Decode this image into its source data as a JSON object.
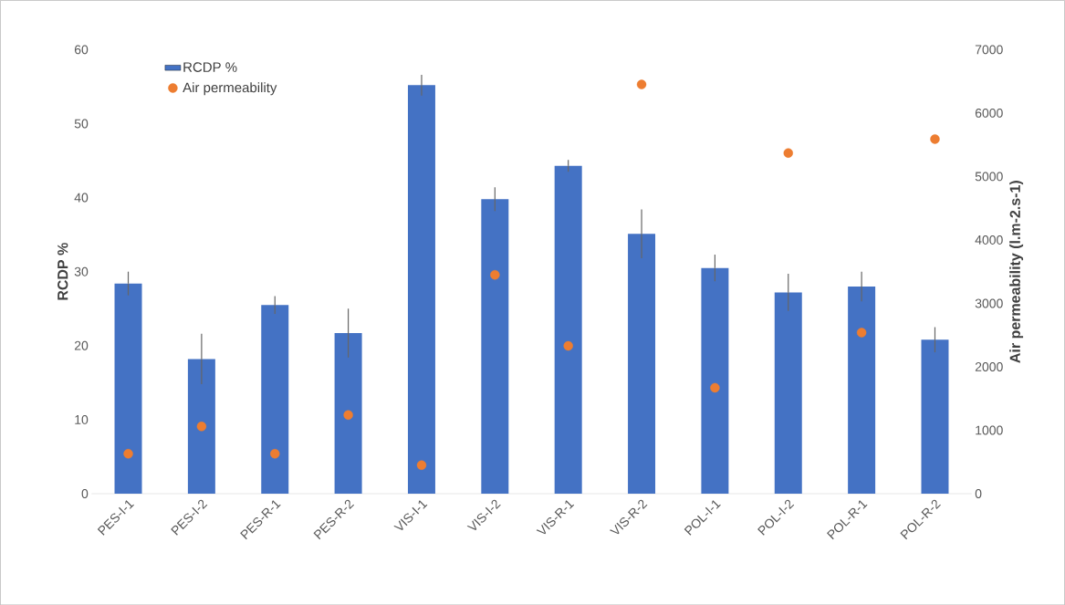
{
  "chart_data": {
    "type": "bar",
    "ylabel": "RCDP %",
    "y2label": "Air permeability (l.m-2.s-1)",
    "categories": [
      "PES-I-1",
      "PES-I-2",
      "PES-R-1",
      "PES-R-2",
      "VIS-I-1",
      "VIS-I-2",
      "VIS-R-1",
      "VIS-R-2",
      "POL-I-1",
      "POL-I-2",
      "POL-R-1",
      "POL-R-2"
    ],
    "series": [
      {
        "name": "RCDP %",
        "color": "#4472c4",
        "values": [
          28.4,
          18.2,
          25.5,
          21.7,
          55.2,
          39.8,
          44.3,
          35.1,
          30.5,
          27.2,
          28.0,
          20.8
        ],
        "errors": [
          1.6,
          3.4,
          1.2,
          3.3,
          1.4,
          1.6,
          0.8,
          3.3,
          1.8,
          2.5,
          2.0,
          1.7
        ]
      },
      {
        "name": "Air permeability",
        "type": "scatter",
        "axis": "y2",
        "color": "#ed7d31",
        "values": [
          630,
          1060,
          630,
          1240,
          450,
          3450,
          2330,
          6450,
          1670,
          5370,
          2540,
          5590
        ]
      }
    ],
    "ylim": [
      0,
      60
    ],
    "yticks": [
      0,
      10,
      20,
      30,
      40,
      50,
      60
    ],
    "y2lim": [
      0,
      7000
    ],
    "y2ticks": [
      0,
      1000,
      2000,
      3000,
      4000,
      5000,
      6000,
      7000
    ],
    "legend": "top left",
    "marker": "circle"
  }
}
